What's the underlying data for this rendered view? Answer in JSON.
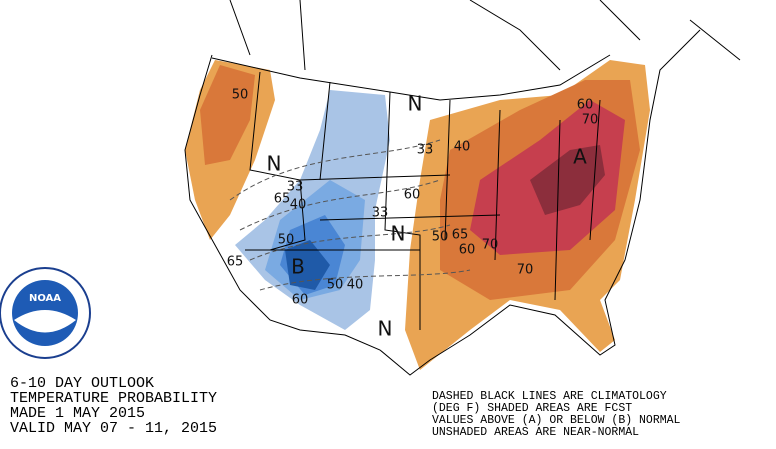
{
  "map": {
    "logo": "NOAA",
    "labels": [
      "50",
      "N",
      "33",
      "40",
      "60",
      "70",
      "A",
      "N",
      "33",
      "40",
      "65",
      "33",
      "60",
      "N",
      "50",
      "65",
      "70",
      "60",
      "50",
      "B",
      "65",
      "50",
      "40",
      "60",
      "N",
      "70"
    ],
    "title_lines": [
      "6-10 DAY OUTLOOK",
      "TEMPERATURE PROBABILITY",
      "MADE  1 MAY 2015",
      "VALID  MAY 07 - 11, 2015"
    ],
    "note_lines": [
      "DASHED BLACK LINES ARE CLIMATOLOGY",
      "(DEG F) SHADED AREAS ARE FCST",
      "VALUES ABOVE (A) OR BELOW (B) NORMAL",
      "UNSHADED AREAS ARE NEAR-NORMAL"
    ]
  }
}
